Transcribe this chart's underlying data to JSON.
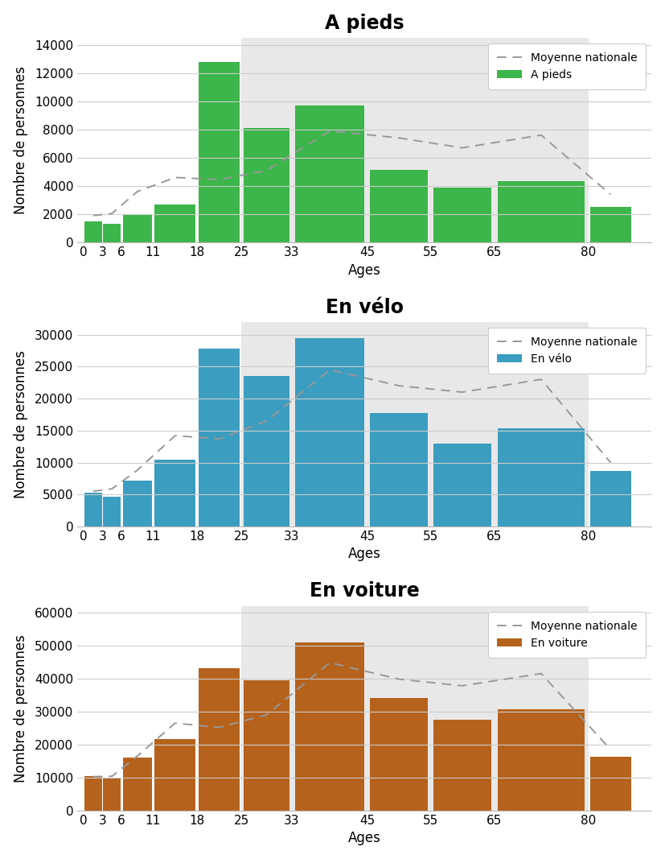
{
  "charts": [
    {
      "title": "A pieds",
      "bar_color": "#3cb54a",
      "legend_label": "A pieds",
      "ylabel": "Nombre de personnes",
      "xlabel": "Ages",
      "bar_values": [
        1500,
        1300,
        1950,
        2700,
        12800,
        8100,
        9700,
        5150,
        3900,
        4350,
        2500
      ],
      "moyenne_values": [
        1900,
        2050,
        3600,
        4600,
        4450,
        5100,
        7900,
        7400,
        6700,
        7600,
        3400
      ],
      "ylim": [
        0,
        14500
      ],
      "yticks": [
        0,
        2000,
        4000,
        6000,
        8000,
        10000,
        12000,
        14000
      ]
    },
    {
      "title": "En vélo",
      "bar_color": "#3b9dbf",
      "legend_label": "En vélo",
      "ylabel": "Nombre de personnes",
      "xlabel": "Ages",
      "bar_values": [
        5300,
        4700,
        7200,
        10400,
        27800,
        23500,
        29500,
        17800,
        12900,
        15400,
        8700
      ],
      "moyenne_values": [
        5500,
        5900,
        8800,
        14200,
        13700,
        16500,
        24500,
        22000,
        21000,
        23000,
        10000
      ],
      "ylim": [
        0,
        32000
      ],
      "yticks": [
        0,
        5000,
        10000,
        15000,
        20000,
        25000,
        30000
      ]
    },
    {
      "title": "En voiture",
      "bar_color": "#b5621c",
      "legend_label": "En voiture",
      "ylabel": "Nombre de personnes",
      "xlabel": "Ages",
      "bar_values": [
        10500,
        9800,
        16000,
        21700,
        43200,
        39500,
        51000,
        34200,
        27600,
        30700,
        16300
      ],
      "moyenne_values": [
        10300,
        10400,
        16500,
        26500,
        25200,
        29000,
        44800,
        39800,
        37800,
        41500,
        18500
      ],
      "ylim": [
        0,
        62000
      ],
      "yticks": [
        0,
        10000,
        20000,
        30000,
        40000,
        50000,
        60000
      ]
    }
  ],
  "age_edges": [
    0,
    3,
    6,
    11,
    18,
    25,
    33,
    45,
    55,
    65,
    80,
    87
  ],
  "age_centers": [
    1.5,
    4.5,
    8.5,
    14.5,
    21.5,
    29,
    39,
    50,
    60,
    72.5,
    83.5
  ],
  "age_labels": [
    "0",
    "3",
    "6",
    "11",
    "18",
    "25",
    "33",
    "45",
    "55",
    "65",
    "80"
  ],
  "xtick_positions": [
    0,
    3,
    6,
    11,
    18,
    25,
    33,
    45,
    55,
    65,
    80
  ],
  "moyenne_x": [
    1.5,
    4.5,
    8.5,
    14.5,
    21.5,
    29,
    39,
    50,
    60,
    72.5,
    83.5
  ],
  "shade_start": 25,
  "shade_end": 80,
  "xlim": [
    -1,
    90
  ],
  "shade_color": "#e8e8e8",
  "background_color": "#ffffff",
  "grid_color": "#cccccc",
  "moyenne_color": "#999999",
  "title_fontsize": 17,
  "label_fontsize": 12,
  "tick_fontsize": 11,
  "legend_fontsize": 10
}
